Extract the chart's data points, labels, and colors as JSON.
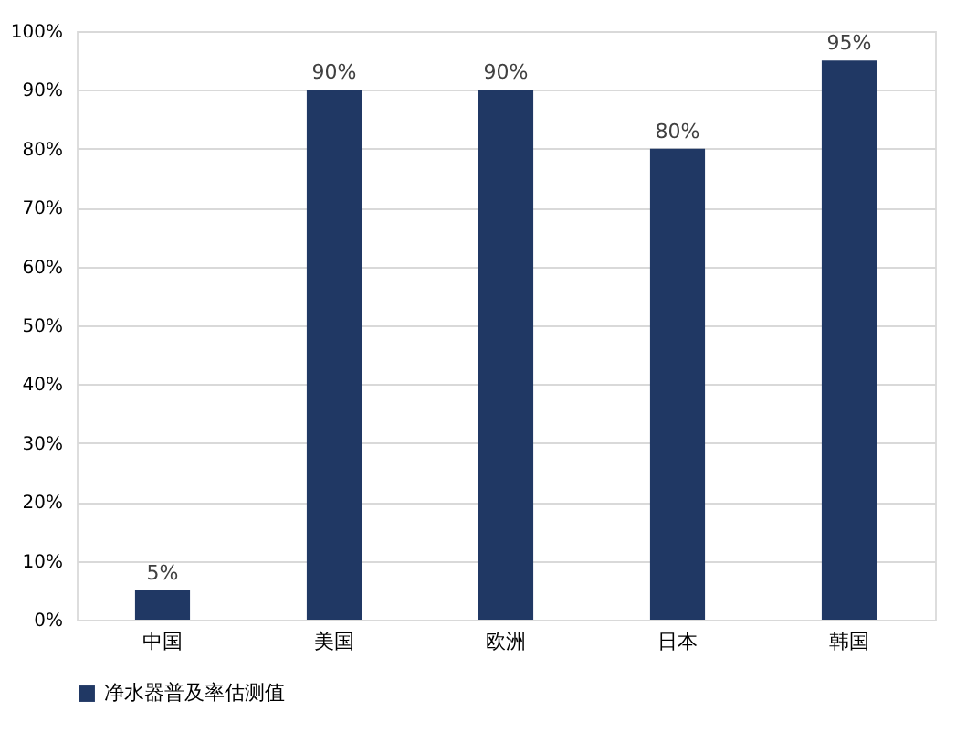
{
  "chart_data": {
    "type": "bar",
    "categories": [
      "中国",
      "美国",
      "欧洲",
      "日本",
      "韩国"
    ],
    "series": [
      {
        "name": "净水器普及率估测值",
        "color": "#203864",
        "values": [
          5,
          90,
          90,
          80,
          95
        ],
        "value_labels": [
          "5%",
          "90%",
          "90%",
          "80%",
          "95%"
        ]
      }
    ],
    "ylim": [
      0,
      100
    ],
    "yticks": [
      {
        "value": 0,
        "label": "0%"
      },
      {
        "value": 10,
        "label": "10%"
      },
      {
        "value": 20,
        "label": "20%"
      },
      {
        "value": 30,
        "label": "30%"
      },
      {
        "value": 40,
        "label": "40%"
      },
      {
        "value": 50,
        "label": "50%"
      },
      {
        "value": 60,
        "label": "60%"
      },
      {
        "value": 70,
        "label": "70%"
      },
      {
        "value": 80,
        "label": "80%"
      },
      {
        "value": 90,
        "label": "90%"
      },
      {
        "value": 100,
        "label": "100%"
      }
    ],
    "grid": "y",
    "legend": "bottom"
  }
}
